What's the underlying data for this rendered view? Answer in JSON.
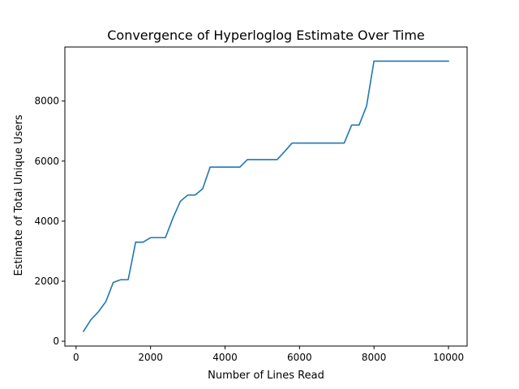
{
  "chart_data": {
    "type": "line",
    "title": "Convergence of Hyperloglog Estimate Over Time",
    "xlabel": "Number of Lines Read",
    "ylabel": "Estimate of Total Unique Users",
    "xlim": [
      -300,
      10500
    ],
    "ylim": [
      -160,
      9800
    ],
    "xticks": [
      0,
      2000,
      4000,
      6000,
      8000,
      10000
    ],
    "yticks": [
      0,
      2000,
      4000,
      6000,
      8000
    ],
    "grid": false,
    "legend": "none",
    "series_color": "#1f77b4",
    "series": [
      {
        "x": [
          200,
          400,
          600,
          800,
          1000,
          1200,
          1400,
          1600,
          1800,
          2000,
          2200,
          2400,
          2600,
          2800,
          3000,
          3200,
          3400,
          3600,
          3800,
          4000,
          4200,
          4400,
          4600,
          4800,
          5000,
          5200,
          5400,
          5600,
          5800,
          6000,
          6200,
          6400,
          6600,
          6800,
          7000,
          7200,
          7400,
          7600,
          7800,
          8000,
          8200,
          8400,
          8600,
          8800,
          9000,
          9200,
          9400,
          9600,
          9800,
          10000
        ],
        "values": [
          330,
          720,
          980,
          1320,
          1960,
          2050,
          2050,
          3300,
          3300,
          3450,
          3450,
          3450,
          4100,
          4660,
          4870,
          4870,
          5080,
          5800,
          5800,
          5800,
          5800,
          5800,
          6050,
          6050,
          6050,
          6050,
          6050,
          6320,
          6600,
          6600,
          6600,
          6600,
          6600,
          6600,
          6600,
          6600,
          7200,
          7200,
          7830,
          9330,
          9330,
          9330,
          9330,
          9330,
          9330,
          9330,
          9330,
          9330,
          9330,
          9330
        ]
      }
    ]
  }
}
